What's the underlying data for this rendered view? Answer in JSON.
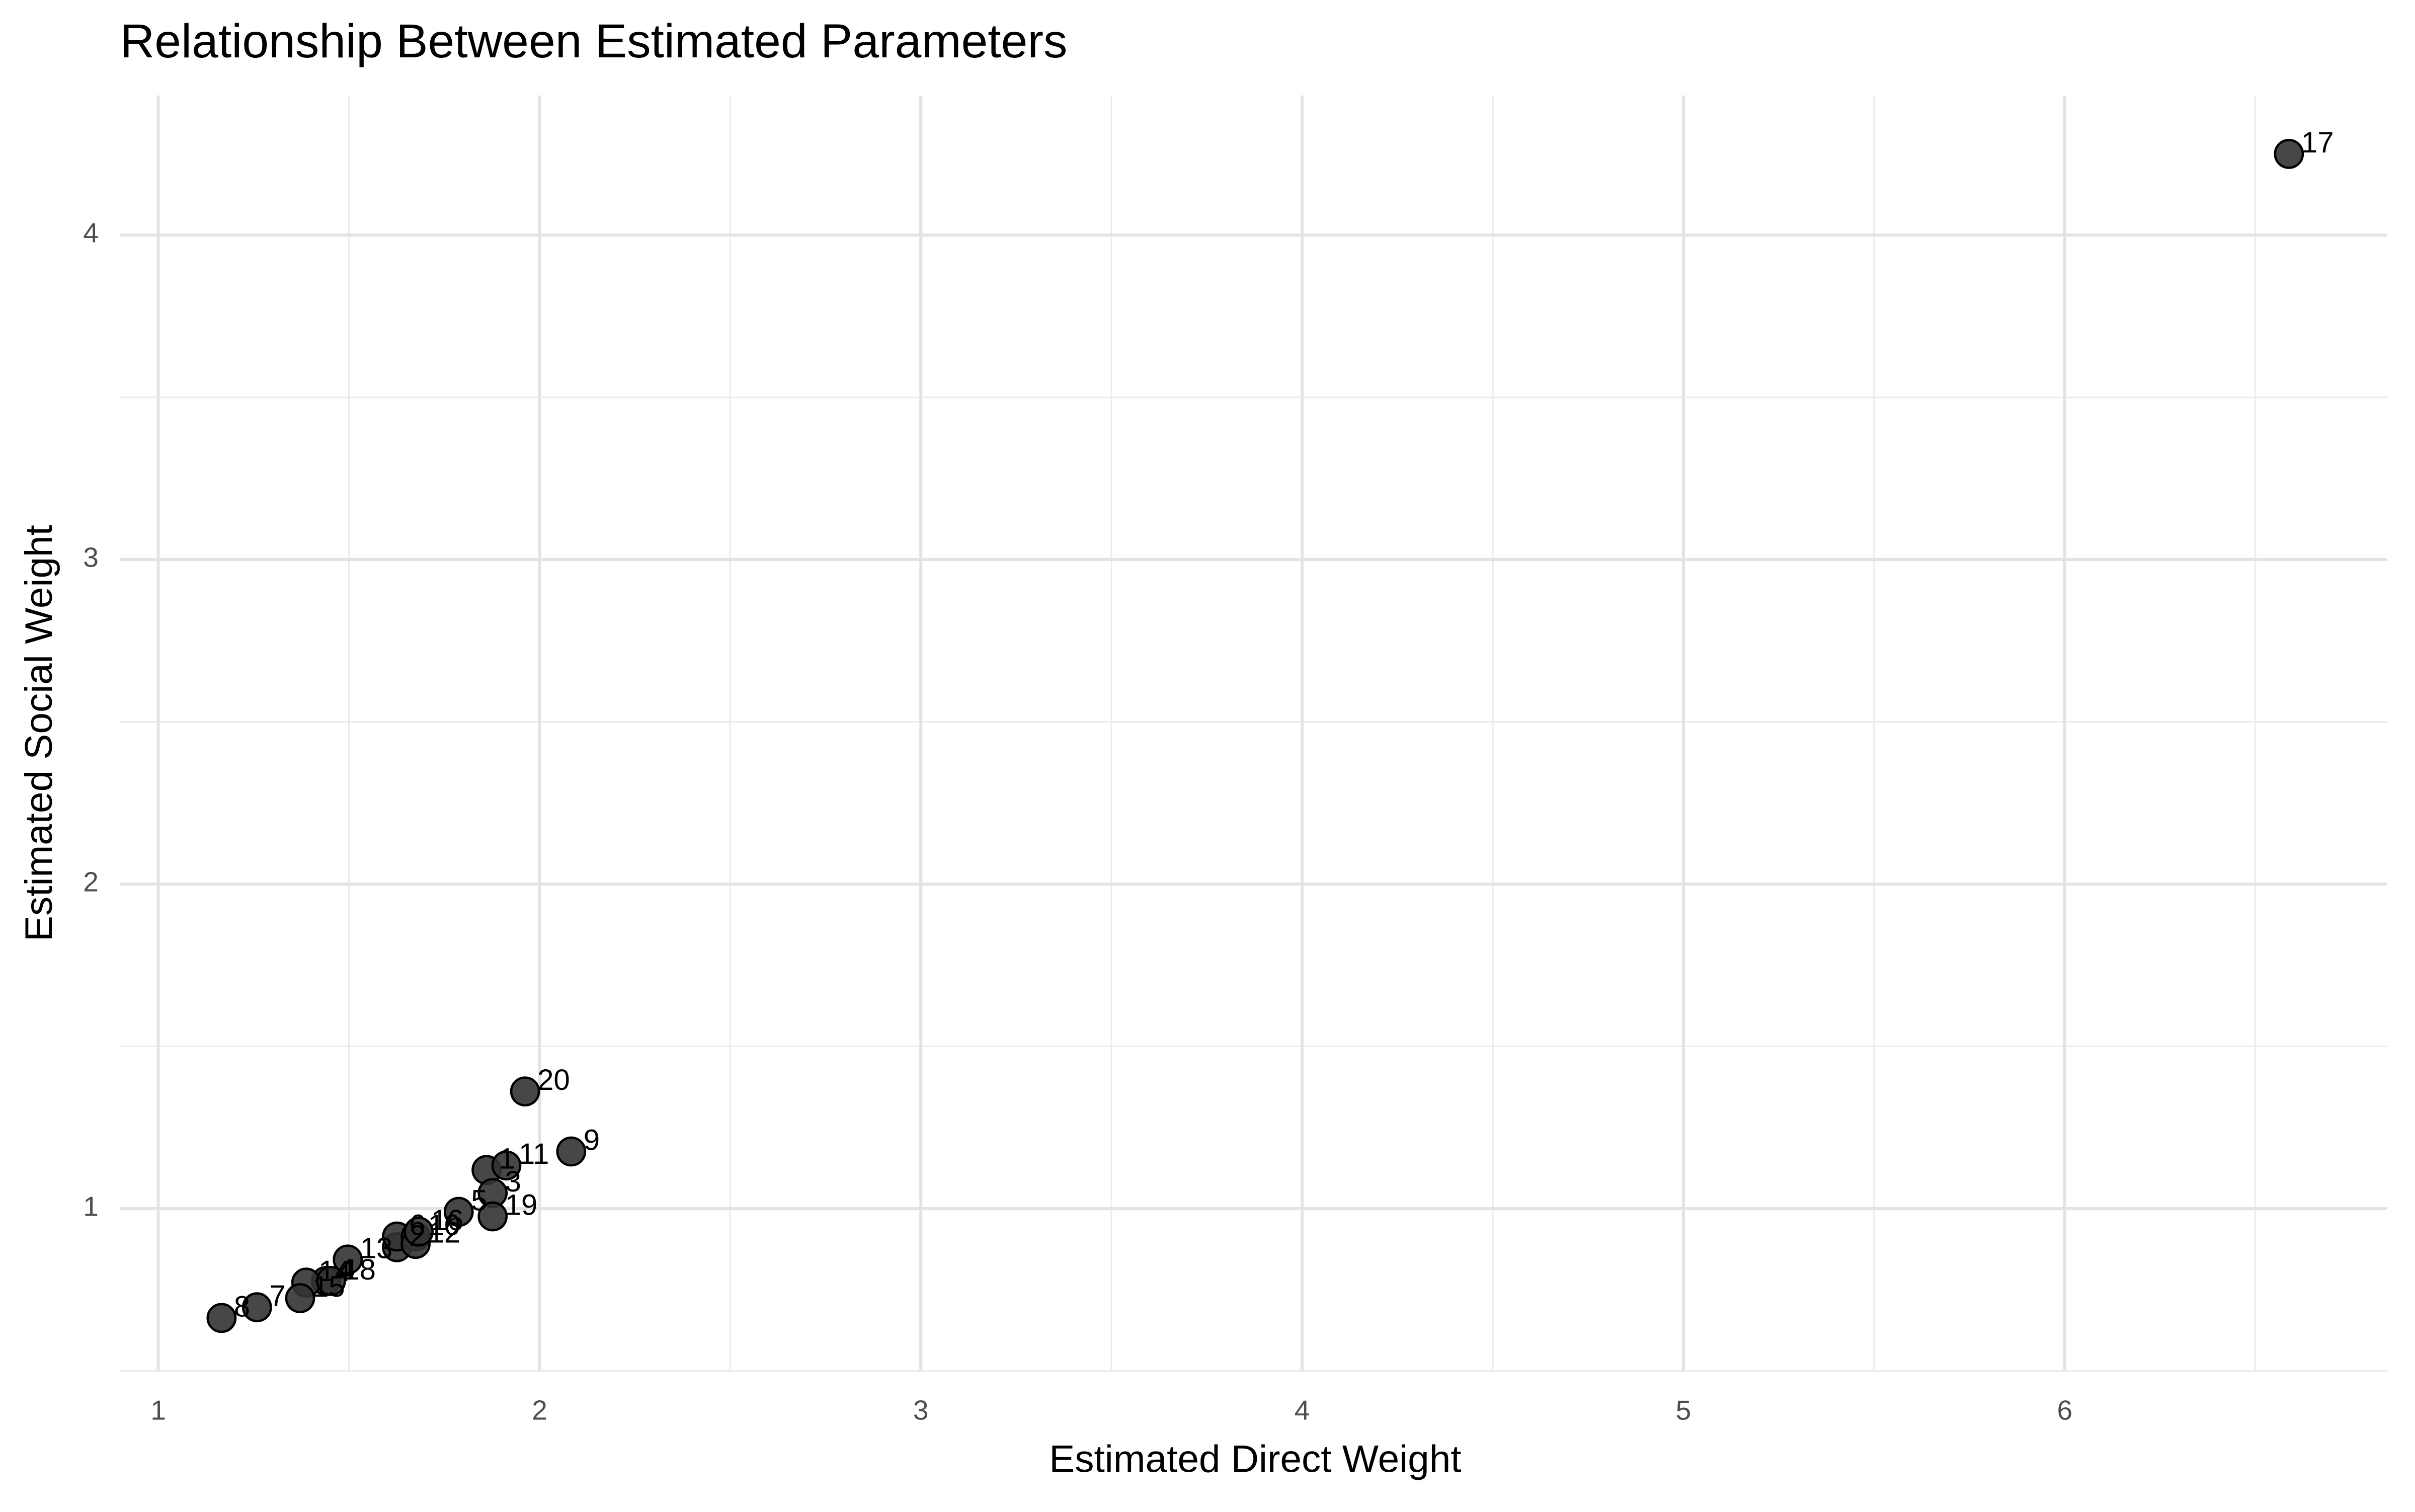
{
  "chart_data": {
    "type": "scatter",
    "title": "Relationship Between Estimated Parameters",
    "x_label": "Estimated Direct Weight",
    "y_label": "Estimated Social Weight",
    "labels": [
      "1",
      "2",
      "3",
      "4",
      "5",
      "6",
      "7",
      "8",
      "9",
      "10",
      "11",
      "12",
      "13",
      "14",
      "15",
      "16",
      "17",
      "18",
      "19",
      "20"
    ],
    "x": [
      1.861,
      1.626,
      1.877,
      1.44,
      1.788,
      1.626,
      1.259,
      1.166,
      2.083,
      1.675,
      1.913,
      1.675,
      1.497,
      1.388,
      1.372,
      1.683,
      6.588,
      1.453,
      1.877,
      1.962
    ],
    "y": [
      1.119,
      0.881,
      1.048,
      0.777,
      0.99,
      0.914,
      0.696,
      0.663,
      1.176,
      0.914,
      1.133,
      0.891,
      0.843,
      0.772,
      0.724,
      0.929,
      4.25,
      0.777,
      0.976,
      1.361
    ],
    "color": "#333333",
    "xlim": [
      0.9,
      6.846
    ],
    "ylim": [
      0.5,
      4.43
    ],
    "xticks": [
      1,
      2,
      3,
      4,
      5,
      6
    ],
    "yticks": [
      1,
      2,
      3,
      4
    ],
    "x_minor_grid": [
      1.5,
      2.5,
      3.5,
      4.5,
      5.5,
      6.5
    ],
    "y_minor_grid": [
      0.5,
      1.5,
      2.5,
      3.5
    ],
    "grid": true
  }
}
